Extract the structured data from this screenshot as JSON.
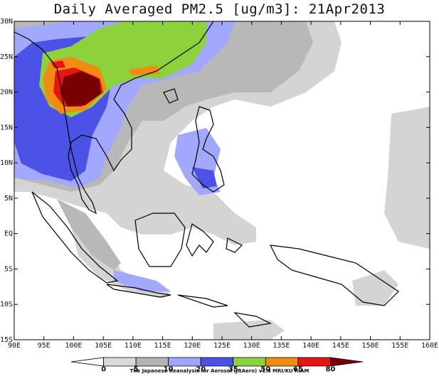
{
  "title": "Daily Averaged PM2.5 [ug/m3]: 21Apr2013",
  "lat_labels": [
    "30N",
    "25N",
    "20N",
    "15N",
    "10N",
    "5N",
    "EQ",
    "5S",
    "10S",
    "15S"
  ],
  "lon_labels": [
    "90E",
    "95E",
    "100E",
    "105E",
    "110E",
    "115E",
    "120E",
    "125E",
    "130E",
    "135E",
    "140E",
    "145E",
    "150E",
    "155E",
    "160E"
  ],
  "colorbar": {
    "levels": [
      "0",
      "5",
      "10",
      "20",
      "35",
      "50",
      "65",
      "80"
    ],
    "colors": [
      "#ffffff",
      "#d9d9d9",
      "#b4b4b4",
      "#a0a6ff",
      "#4b50e6",
      "#8cd23c",
      "#f08c14",
      "#e61414",
      "#780000"
    ]
  },
  "footer": "The Japanese Reanalysis for Aerosol (JRAero) v1.0 MRI/KU RIAM"
}
